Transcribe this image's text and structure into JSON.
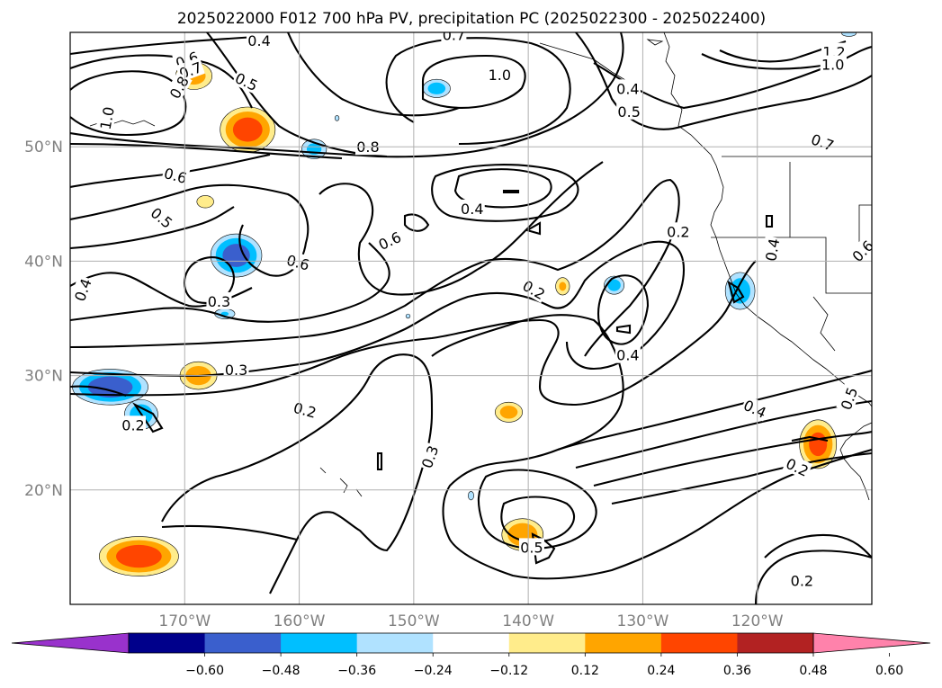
{
  "chart_data": {
    "type": "contour-map",
    "title": "2025022000 F012 700 hPa PV, precipitation PC (2025022300 - 2025022400)",
    "map": {
      "projection": "PlateCarree",
      "lon_range": [
        -180,
        -110
      ],
      "lat_range": [
        10,
        60
      ],
      "lon_ticks": [
        -170,
        -160,
        -150,
        -140,
        -130,
        -120
      ],
      "lat_ticks": [
        20,
        30,
        40,
        50
      ],
      "lon_tick_labels": [
        "170°W",
        "160°W",
        "150°W",
        "140°W",
        "130°W",
        "120°W"
      ],
      "lat_tick_labels": [
        "20°N",
        "30°N",
        "40°N",
        "50°N"
      ],
      "grid": true
    },
    "pv_contours": {
      "variable": "700 hPa PV",
      "color": "#000000",
      "levels": [
        0.2,
        0.3,
        0.4,
        0.5,
        0.6,
        0.7,
        0.8,
        1.0,
        1.2
      ],
      "labels": [
        {
          "text": "0.4",
          "lon": -163.5,
          "lat": 59.3,
          "rot": 0
        },
        {
          "text": "0.6",
          "lon": -169.8,
          "lat": 57.6,
          "rot": -20
        },
        {
          "text": "0.7",
          "lon": -169.5,
          "lat": 56.7,
          "rot": -20
        },
        {
          "text": "0.8",
          "lon": -170.5,
          "lat": 55.2,
          "rot": -60
        },
        {
          "text": "1.0",
          "lon": -176.8,
          "lat": 52.5,
          "rot": -80
        },
        {
          "text": "0.5",
          "lon": -164.6,
          "lat": 55.7,
          "rot": 25
        },
        {
          "text": "0.7",
          "lon": -146.5,
          "lat": 59.8,
          "rot": 0
        },
        {
          "text": "1.0",
          "lon": -142.5,
          "lat": 56.3,
          "rot": 0
        },
        {
          "text": "0.4",
          "lon": -131.3,
          "lat": 55.1,
          "rot": 0
        },
        {
          "text": "0.5",
          "lon": -131.2,
          "lat": 53.1,
          "rot": 0
        },
        {
          "text": "1.2",
          "lon": -113.3,
          "lat": 58.3,
          "rot": 0
        },
        {
          "text": "1.0",
          "lon": -113.4,
          "lat": 57.2,
          "rot": 0
        },
        {
          "text": "0.8",
          "lon": -108.0,
          "lat": 58.7,
          "rot": -45
        },
        {
          "text": "0.8",
          "lon": -154.0,
          "lat": 50.0,
          "rot": 0
        },
        {
          "text": "0.7",
          "lon": -114.3,
          "lat": 50.4,
          "rot": 20
        },
        {
          "text": "0.8",
          "lon": -108.0,
          "lat": 51.5,
          "rot": 30
        },
        {
          "text": "0.6",
          "lon": -170.8,
          "lat": 47.5,
          "rot": 15
        },
        {
          "text": "0.5",
          "lon": -172.0,
          "lat": 43.8,
          "rot": 40
        },
        {
          "text": "0.4",
          "lon": -144.9,
          "lat": 44.6,
          "rot": 0
        },
        {
          "text": "0.6",
          "lon": -152.1,
          "lat": 41.8,
          "rot": -25
        },
        {
          "text": "0.6",
          "lon": -160.1,
          "lat": 39.9,
          "rot": 15
        },
        {
          "text": "0.2",
          "lon": -126.9,
          "lat": 42.6,
          "rot": 0
        },
        {
          "text": "0.4",
          "lon": -118.7,
          "lat": 41.0,
          "rot": -80
        },
        {
          "text": "0.6",
          "lon": -110.8,
          "lat": 40.9,
          "rot": -45
        },
        {
          "text": "0.4",
          "lon": -178.9,
          "lat": 37.5,
          "rot": -70
        },
        {
          "text": "0.3",
          "lon": -167.0,
          "lat": 36.5,
          "rot": 0
        },
        {
          "text": "0.2",
          "lon": -139.5,
          "lat": 37.5,
          "rot": 30
        },
        {
          "text": "0.4",
          "lon": -131.3,
          "lat": 31.8,
          "rot": 0
        },
        {
          "text": "0.3",
          "lon": -165.5,
          "lat": 30.5,
          "rot": 0
        },
        {
          "text": "0.5",
          "lon": -112.0,
          "lat": 28.0,
          "rot": -70
        },
        {
          "text": "0.4",
          "lon": -120.2,
          "lat": 27.1,
          "rot": 25
        },
        {
          "text": "0.2",
          "lon": -159.5,
          "lat": 27.0,
          "rot": 15
        },
        {
          "text": "0.2",
          "lon": -174.5,
          "lat": 25.7,
          "rot": 0
        },
        {
          "text": "0.3",
          "lon": -148.6,
          "lat": 22.9,
          "rot": -70
        },
        {
          "text": "0.2",
          "lon": -116.5,
          "lat": 22.0,
          "rot": 25
        },
        {
          "text": "0.5",
          "lon": -139.7,
          "lat": 15.0,
          "rot": 0
        },
        {
          "text": "0.2",
          "lon": -116.1,
          "lat": 12.1,
          "rot": 0
        }
      ]
    },
    "precip_pc": {
      "variable": "precipitation PC",
      "colorbar": {
        "levels": [
          -0.72,
          -0.6,
          -0.48,
          -0.36,
          -0.24,
          -0.12,
          0.12,
          0.24,
          0.36,
          0.48,
          0.6,
          0.72
        ],
        "tick_values": [
          -0.6,
          -0.48,
          -0.36,
          -0.24,
          -0.12,
          0.12,
          0.24,
          0.36,
          0.48,
          0.6
        ],
        "tick_labels": [
          "−0.60",
          "−0.48",
          "−0.36",
          "−0.24",
          "−0.12",
          "0.12",
          "0.24",
          "0.36",
          "0.48",
          "0.60"
        ],
        "colors": [
          "#9932CC",
          "#00008B",
          "#3A5FCD",
          "#00BFFF",
          "#B0E2FF",
          "#FFFFFF",
          "#FFEC8B",
          "#FFA500",
          "#FF4500",
          "#B22222",
          "#FF82AB"
        ],
        "extend": "both",
        "orientation": "horizontal"
      },
      "blobs": [
        {
          "lon": -169.2,
          "lat": 56.2,
          "rx": 2.0,
          "ry": 1.5,
          "peak": 0.3
        },
        {
          "lon": -164.5,
          "lat": 51.5,
          "rx": 2.8,
          "ry": 2.3,
          "peak": 0.42
        },
        {
          "lon": -168.2,
          "lat": 45.2,
          "rx": 1.1,
          "ry": 0.8,
          "peak": 0.2
        },
        {
          "lon": -168.8,
          "lat": 30.0,
          "rx": 2.0,
          "ry": 1.5,
          "peak": 0.32
        },
        {
          "lon": -174.0,
          "lat": 14.2,
          "rx": 4.0,
          "ry": 2.0,
          "peak": 0.44
        },
        {
          "lon": -141.7,
          "lat": 26.8,
          "rx": 1.5,
          "ry": 1.1,
          "peak": 0.3
        },
        {
          "lon": -140.5,
          "lat": 16.1,
          "rx": 2.2,
          "ry": 1.7,
          "peak": 0.34
        },
        {
          "lon": -137.0,
          "lat": 37.8,
          "rx": 0.8,
          "ry": 1.0,
          "peak": 0.26
        },
        {
          "lon": -114.7,
          "lat": 24.0,
          "rx": 1.9,
          "ry": 2.5,
          "peak": 0.4
        },
        {
          "lon": -165.5,
          "lat": 40.5,
          "rx": 2.6,
          "ry": 2.2,
          "peak": -0.42
        },
        {
          "lon": -176.5,
          "lat": 29.0,
          "rx": 3.8,
          "ry": 1.8,
          "peak": -0.45
        },
        {
          "lon": -173.8,
          "lat": 26.6,
          "rx": 1.8,
          "ry": 1.6,
          "peak": -0.32
        },
        {
          "lon": -158.7,
          "lat": 49.8,
          "rx": 1.4,
          "ry": 1.1,
          "peak": -0.28
        },
        {
          "lon": -148.0,
          "lat": 55.1,
          "rx": 1.5,
          "ry": 1.0,
          "peak": -0.3
        },
        {
          "lon": -121.5,
          "lat": 37.4,
          "rx": 1.6,
          "ry": 2.0,
          "peak": -0.32
        },
        {
          "lon": -132.5,
          "lat": 37.9,
          "rx": 1.1,
          "ry": 1.0,
          "peak": -0.3
        },
        {
          "lon": -166.5,
          "lat": 35.4,
          "rx": 1.2,
          "ry": 0.6,
          "peak": -0.24
        },
        {
          "lon": -150.5,
          "lat": 35.2,
          "rx": 0.4,
          "ry": 0.4,
          "peak": -0.14
        },
        {
          "lon": -145.0,
          "lat": 19.5,
          "rx": 0.4,
          "ry": 0.6,
          "peak": -0.18
        },
        {
          "lon": -156.7,
          "lat": 52.5,
          "rx": 0.4,
          "ry": 0.5,
          "peak": -0.14
        },
        {
          "lon": -112.0,
          "lat": 59.9,
          "rx": 1.0,
          "ry": 0.4,
          "peak": -0.18
        }
      ]
    }
  }
}
